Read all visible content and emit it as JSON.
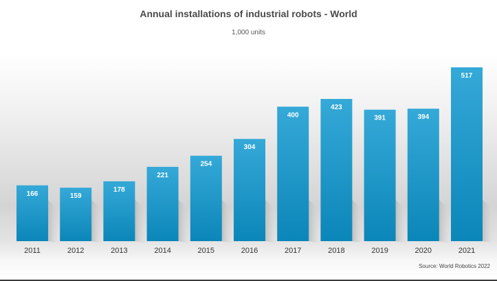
{
  "chart_data": {
    "type": "bar",
    "title": "Annual installations of industrial robots - World",
    "subtitle": "1,000 units",
    "categories": [
      "2011",
      "2012",
      "2013",
      "2014",
      "2015",
      "2016",
      "2017",
      "2018",
      "2019",
      "2020",
      "2021"
    ],
    "values": [
      166,
      159,
      178,
      221,
      254,
      304,
      400,
      423,
      391,
      394,
      517
    ],
    "xlabel": "",
    "ylabel": "",
    "ylim": [
      0,
      517
    ],
    "grid": false,
    "legend": "none",
    "source": "Source: World Robotics 2022",
    "colors": {
      "bar_top": "#35a9d8",
      "bar_bottom": "#0b86b8",
      "label": "#ffffff"
    }
  }
}
